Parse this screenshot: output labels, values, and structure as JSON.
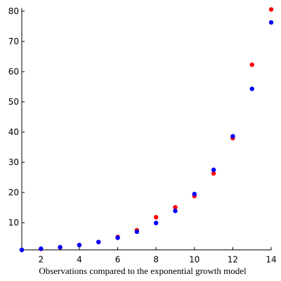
{
  "chart_data": {
    "type": "scatter",
    "x_label": "Observations compared to the exponential growth model",
    "x": [
      1,
      2,
      3,
      4,
      5,
      6,
      7,
      8,
      9,
      10,
      11,
      12,
      13,
      14
    ],
    "series": [
      {
        "color": "#ff0000",
        "values": [
          1.0,
          1.3,
          1.8,
          2.6,
          3.6,
          5.3,
          7.5,
          11.8,
          15.1,
          18.8,
          26.3,
          38.0,
          62.3,
          80.6
        ]
      },
      {
        "color": "#0000ff",
        "values": [
          1.0,
          1.4,
          1.9,
          2.6,
          3.6,
          5.0,
          7.0,
          9.9,
          13.9,
          19.5,
          27.5,
          38.6,
          54.3,
          76.3
        ]
      }
    ],
    "xlim": [
      1,
      14
    ],
    "ylim": [
      1,
      80.6
    ],
    "xticks": [
      2,
      4,
      6,
      8,
      10,
      12,
      14
    ],
    "yticks": [
      10,
      20,
      30,
      40,
      50,
      60,
      70,
      80
    ],
    "grid": false
  }
}
